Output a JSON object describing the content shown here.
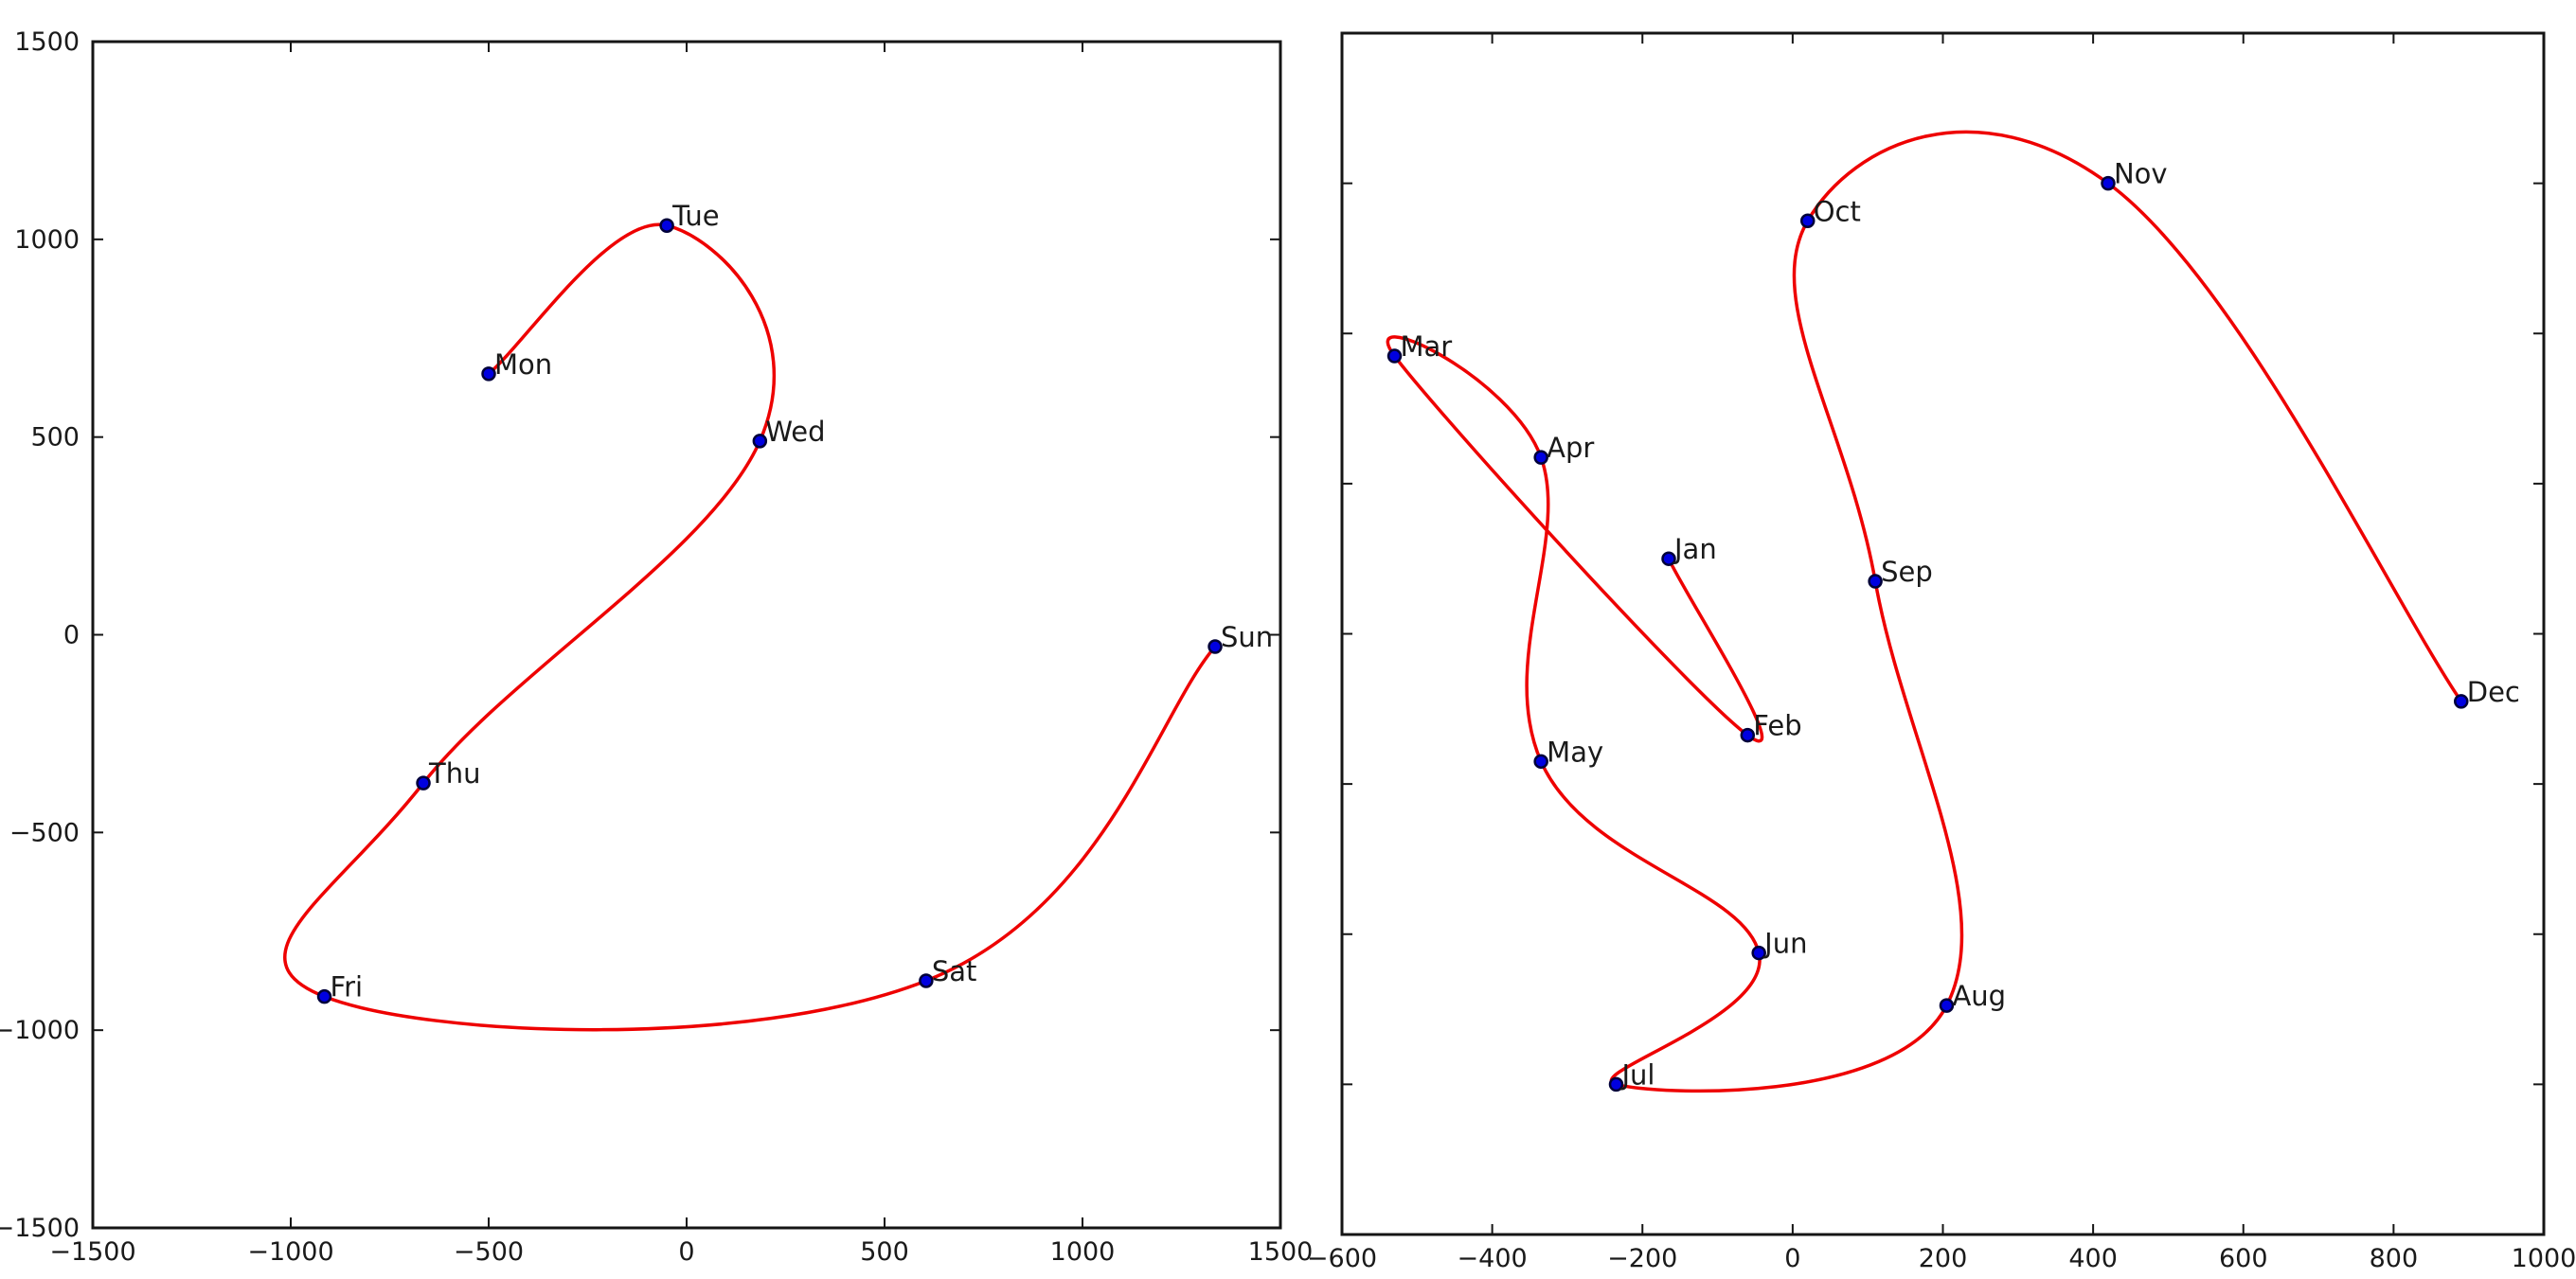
{
  "page": {
    "background": "#ffffff"
  },
  "chart_data": [
    {
      "id": "weekday-plot",
      "type": "scatter",
      "curve": "smooth-spline-through-points-open",
      "title": "",
      "xlabel": "",
      "ylabel": "",
      "grid": false,
      "legend": null,
      "xlim": [
        -1500,
        1500
      ],
      "ylim": [
        -1500,
        1500
      ],
      "xticks": [
        -1500,
        -1000,
        -500,
        0,
        500,
        1000,
        1500
      ],
      "yticks": [
        -1500,
        -1000,
        -500,
        0,
        500,
        1000,
        1500
      ],
      "xtick_labels": [
        "−1500",
        "−1000",
        "−500",
        "0",
        "500",
        "1000",
        "1500"
      ],
      "ytick_labels": [
        "−1500",
        "−1000",
        "−500",
        "0",
        "500",
        "1000",
        "1500"
      ],
      "points": [
        {
          "label": "Mon",
          "x": -500,
          "y": 660
        },
        {
          "label": "Tue",
          "x": -50,
          "y": 1035
        },
        {
          "label": "Wed",
          "x": 185,
          "y": 490
        },
        {
          "label": "Thu",
          "x": -665,
          "y": -375
        },
        {
          "label": "Fri",
          "x": -915,
          "y": -915
        },
        {
          "label": "Sat",
          "x": 605,
          "y": -875
        },
        {
          "label": "Sun",
          "x": 1335,
          "y": -30
        }
      ],
      "line_color": "#ee0000",
      "marker_color": "#0000e0",
      "marker_edge_color": "#00003a",
      "axis_color": "#151515",
      "label_color": "#1a1a1a"
    },
    {
      "id": "month-plot",
      "type": "scatter",
      "curve": "smooth-spline-through-points-open",
      "title": "",
      "xlabel": "",
      "ylabel": "",
      "grid": false,
      "legend": null,
      "xlim": [
        -600,
        1000
      ],
      "ylim": [
        -800,
        800
      ],
      "xticks": [
        -600,
        -400,
        -200,
        0,
        200,
        400,
        600,
        800,
        1000
      ],
      "yticks": [
        -800,
        -600,
        -400,
        -200,
        0,
        200,
        400,
        600,
        800
      ],
      "xtick_labels": [
        "−600",
        "−400",
        "−200",
        "0",
        "200",
        "400",
        "600",
        "800",
        "1000"
      ],
      "ytick_labels": [],
      "points": [
        {
          "label": "Jan",
          "x": -165,
          "y": 100
        },
        {
          "label": "Feb",
          "x": -60,
          "y": -135
        },
        {
          "label": "Mar",
          "x": -530,
          "y": 370
        },
        {
          "label": "Apr",
          "x": -335,
          "y": 235
        },
        {
          "label": "May",
          "x": -335,
          "y": -170
        },
        {
          "label": "Jun",
          "x": -45,
          "y": -425
        },
        {
          "label": "Jul",
          "x": -235,
          "y": -600
        },
        {
          "label": "Aug",
          "x": 205,
          "y": -495
        },
        {
          "label": "Sep",
          "x": 110,
          "y": 70
        },
        {
          "label": "Oct",
          "x": 20,
          "y": 550
        },
        {
          "label": "Nov",
          "x": 420,
          "y": 600
        },
        {
          "label": "Dec",
          "x": 890,
          "y": -90
        }
      ],
      "line_color": "#ee0000",
      "marker_color": "#0000e0",
      "marker_edge_color": "#00003a",
      "axis_color": "#151515",
      "label_color": "#1a1a1a"
    }
  ]
}
